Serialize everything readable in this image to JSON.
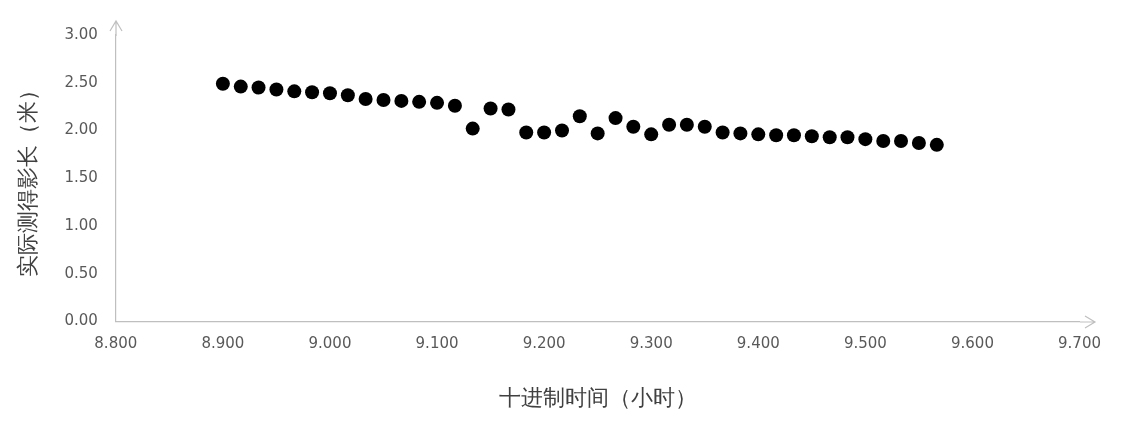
{
  "chart_data": {
    "type": "scatter",
    "xlabel": "十进制时间（小时）",
    "ylabel": "实际测得影长（米）",
    "x": [
      8.9,
      8.9167,
      8.9333,
      8.95,
      8.9667,
      8.9833,
      9.0,
      9.0167,
      9.0333,
      9.05,
      9.0667,
      9.0833,
      9.1,
      9.1167,
      9.1333,
      9.15,
      9.1667,
      9.1833,
      9.2,
      9.2167,
      9.2333,
      9.25,
      9.2667,
      9.2833,
      9.3,
      9.3167,
      9.3333,
      9.35,
      9.3667,
      9.3833,
      9.4,
      9.4167,
      9.4333,
      9.45,
      9.4667,
      9.4833,
      9.5,
      9.5167,
      9.5333,
      9.55,
      9.5667
    ],
    "series": [
      {
        "color": "#000000",
        "values": [
          2.49,
          2.46,
          2.45,
          2.43,
          2.41,
          2.4,
          2.39,
          2.37,
          2.33,
          2.32,
          2.31,
          2.3,
          2.29,
          2.26,
          2.02,
          2.23,
          2.22,
          1.98,
          1.98,
          2.0,
          2.15,
          1.97,
          2.13,
          2.04,
          1.96,
          2.06,
          2.06,
          2.04,
          1.98,
          1.97,
          1.96,
          1.95,
          1.95,
          1.94,
          1.93,
          1.93,
          1.91,
          1.89,
          1.89,
          1.87,
          1.85
        ]
      }
    ],
    "xlim": [
      8.8,
      9.7
    ],
    "xticks": [
      {
        "value": 8.8,
        "label": "8.800"
      },
      {
        "value": 8.9,
        "label": "8.900"
      },
      {
        "value": 9.0,
        "label": "9.000"
      },
      {
        "value": 9.1,
        "label": "9.100"
      },
      {
        "value": 9.2,
        "label": "9.200"
      },
      {
        "value": 9.3,
        "label": "9.300"
      },
      {
        "value": 9.4,
        "label": "9.400"
      },
      {
        "value": 9.5,
        "label": "9.500"
      },
      {
        "value": 9.6,
        "label": "9.600"
      },
      {
        "value": 9.7,
        "label": "9.700"
      }
    ],
    "ylim": [
      0,
      3
    ],
    "yticks": [
      {
        "value": 0,
        "label": "0.00"
      },
      {
        "value": 0.5,
        "label": "0.50"
      },
      {
        "value": 1,
        "label": "1.00"
      },
      {
        "value": 1.5,
        "label": "1.50"
      },
      {
        "value": 2,
        "label": "2.00"
      },
      {
        "value": 2.5,
        "label": "2.50"
      },
      {
        "value": 3,
        "label": "3.00"
      }
    ],
    "grid": false,
    "legend": false,
    "marker": "circle"
  }
}
